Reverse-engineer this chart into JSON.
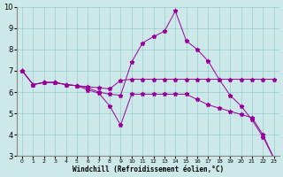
{
  "xlabel": "Windchill (Refroidissement éolien,°C)",
  "background_color": "#cce8e8",
  "line_color": "#990099",
  "xlim": [
    -0.5,
    23.5
  ],
  "ylim": [
    3,
    10
  ],
  "yticks": [
    3,
    4,
    5,
    6,
    7,
    8,
    9,
    10
  ],
  "xticks": [
    0,
    1,
    2,
    3,
    4,
    5,
    6,
    7,
    8,
    9,
    10,
    11,
    12,
    13,
    14,
    15,
    16,
    17,
    18,
    19,
    20,
    21,
    22,
    23
  ],
  "line1_x": [
    0,
    1,
    2,
    3,
    4,
    5,
    6,
    7,
    8,
    9,
    10,
    11,
    12,
    13,
    14,
    15,
    16,
    17,
    18,
    19,
    20,
    21,
    22,
    23
  ],
  "line1_y": [
    7.0,
    6.35,
    6.45,
    6.45,
    6.35,
    6.3,
    6.25,
    6.2,
    6.15,
    6.55,
    6.6,
    6.6,
    6.6,
    6.6,
    6.6,
    6.6,
    6.6,
    6.6,
    6.6,
    6.6,
    6.6,
    6.6,
    6.6,
    6.6
  ],
  "line2_x": [
    0,
    1,
    2,
    3,
    4,
    5,
    6,
    7,
    8,
    9,
    10,
    11,
    12,
    13,
    14,
    15,
    16,
    17,
    18,
    19,
    20,
    21,
    22,
    23
  ],
  "line2_y": [
    7.0,
    6.35,
    6.45,
    6.45,
    6.35,
    6.3,
    6.2,
    6.0,
    5.9,
    5.85,
    7.4,
    8.3,
    8.6,
    8.85,
    9.8,
    8.4,
    8.0,
    7.45,
    6.6,
    5.85,
    5.35,
    4.7,
    3.9,
    2.9
  ],
  "line3_x": [
    0,
    1,
    2,
    3,
    4,
    5,
    6,
    7,
    8,
    9,
    10,
    11,
    12,
    13,
    14,
    15,
    16,
    17,
    18,
    19,
    20,
    21,
    22,
    23
  ],
  "line3_y": [
    7.0,
    6.35,
    6.45,
    6.45,
    6.35,
    6.3,
    6.1,
    5.95,
    5.35,
    4.45,
    5.9,
    5.9,
    5.9,
    5.9,
    5.9,
    5.9,
    5.65,
    5.4,
    5.25,
    5.1,
    4.95,
    4.8,
    4.0,
    2.9
  ],
  "grid_color": "#99cccc",
  "marker": "*",
  "marker_size": 3.5
}
